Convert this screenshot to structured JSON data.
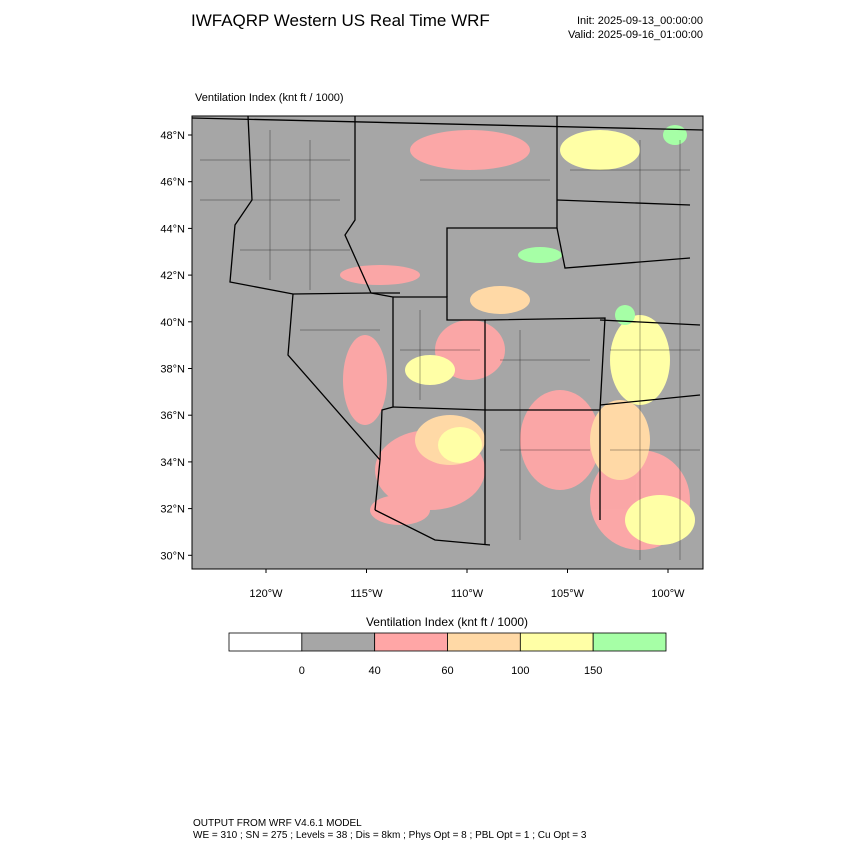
{
  "header": {
    "title": "IWFAQRP Western US Real Time WRF",
    "init": "Init: 2025-09-13_00:00:00",
    "valid": "Valid: 2025-09-16_01:00:00"
  },
  "map": {
    "label": "Ventilation Index   (knt ft / 1000)",
    "lat_labels": [
      "48°N",
      "46°N",
      "44°N",
      "42°N",
      "40°N",
      "38°N",
      "36°N",
      "34°N",
      "32°N",
      "30°N"
    ],
    "lon_labels": [
      "120°W",
      "115°W",
      "110°W",
      "105°W",
      "100°W"
    ]
  },
  "legend": {
    "title": "Ventilation Index   (knt ft / 1000)",
    "colors": [
      "#ffffff",
      "#a6a6a6",
      "#ffa6a6",
      "#ffd9a6",
      "#ffffa6",
      "#a6ffa6"
    ],
    "labels": [
      "0",
      "40",
      "60",
      "100",
      "150"
    ]
  },
  "footer": {
    "line1": "OUTPUT FROM WRF V4.6.1 MODEL",
    "line2": "WE = 310 ; SN = 275 ; Levels = 38 ; Dis = 8km ; Phys Opt = 8 ; PBL Opt = 1 ; Cu Opt = 3"
  }
}
